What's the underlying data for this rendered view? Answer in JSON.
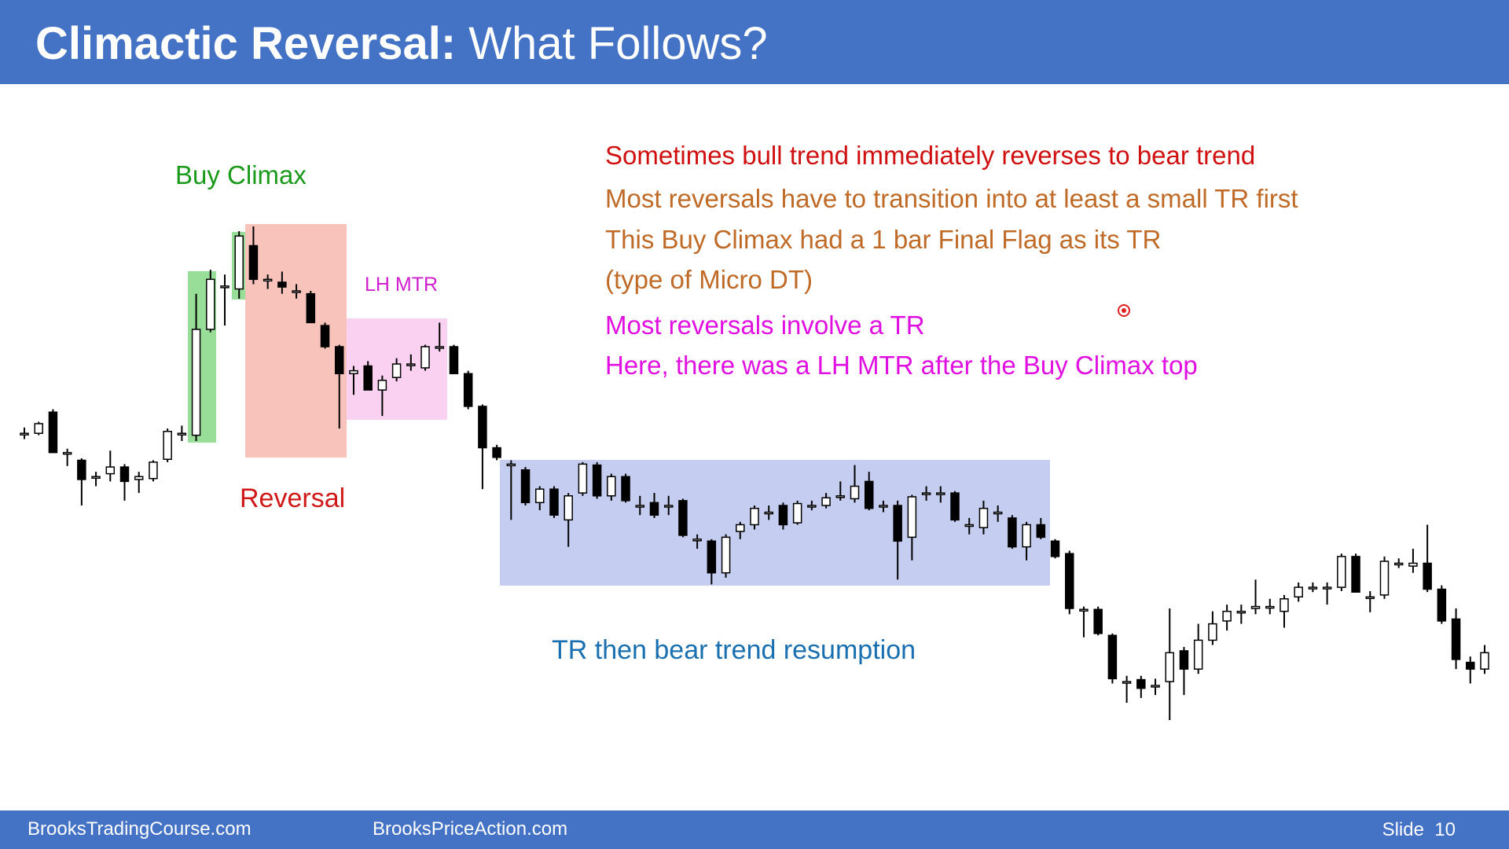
{
  "header": {
    "title_bold": "Climactic Reversal:",
    "title_rest": "What Follows?"
  },
  "notes": [
    "Sometimes bull trend immediately reverses to bear trend",
    "Most reversals have to transition into at least a small TR first",
    "This Buy Climax had a 1 bar Final Flag as its TR",
    "(type of Micro DT)",
    "Most reversals involve a TR",
    "Here, there was a LH MTR after the Buy Climax top"
  ],
  "labels": {
    "buy_climax": "Buy Climax",
    "lh_mtr": "LH MTR",
    "reversal": "Reversal",
    "tr": "TR then bear trend resumption"
  },
  "footer": {
    "left": "BrooksTradingCourse.com",
    "middle": "BrooksPriceAction.com",
    "slide": "Slide  10"
  },
  "chart_data": {
    "type": "candlestick",
    "up_color": "#ffffff",
    "down_color": "#000000",
    "candles": [
      [
        550,
        556,
        544,
        550
      ],
      [
        550,
        562,
        548,
        560
      ],
      [
        572,
        575,
        530,
        530
      ],
      [
        530,
        534,
        516,
        530
      ],
      [
        522,
        524,
        475,
        502
      ],
      [
        505,
        510,
        495,
        505
      ],
      [
        508,
        532,
        500,
        515
      ],
      [
        515,
        518,
        480,
        500
      ],
      [
        502,
        510,
        488,
        505
      ],
      [
        503,
        522,
        500,
        520
      ],
      [
        523,
        555,
        520,
        552
      ],
      [
        550,
        558,
        542,
        550
      ],
      [
        548,
        695,
        542,
        658
      ],
      [
        658,
        720,
        655,
        710
      ],
      [
        703,
        715,
        662,
        703
      ],
      [
        700,
        760,
        690,
        755
      ],
      [
        745,
        765,
        705,
        710
      ],
      [
        710,
        715,
        700,
        710
      ],
      [
        707,
        718,
        695,
        702
      ],
      [
        698,
        705,
        690,
        698
      ],
      [
        695,
        698,
        665,
        665
      ],
      [
        662,
        665,
        638,
        640
      ],
      [
        640,
        642,
        555,
        612
      ],
      [
        612,
        620,
        590,
        615
      ],
      [
        620,
        625,
        595,
        595
      ],
      [
        595,
        610,
        568,
        605
      ],
      [
        608,
        628,
        604,
        622
      ],
      [
        622,
        632,
        615,
        622
      ],
      [
        618,
        642,
        615,
        640
      ],
      [
        640,
        665,
        635,
        640
      ],
      [
        640,
        642,
        612,
        612
      ],
      [
        612,
        615,
        575,
        578
      ],
      [
        578,
        580,
        492,
        535
      ],
      [
        535,
        538,
        522,
        525
      ],
      [
        518,
        522,
        460,
        518
      ],
      [
        512,
        515,
        475,
        478
      ],
      [
        478,
        495,
        470,
        492
      ],
      [
        492,
        495,
        462,
        465
      ],
      [
        460,
        488,
        432,
        485
      ],
      [
        488,
        520,
        485,
        518
      ],
      [
        517,
        520,
        482,
        485
      ],
      [
        485,
        508,
        480,
        505
      ],
      [
        505,
        508,
        478,
        480
      ],
      [
        475,
        485,
        465,
        475
      ],
      [
        478,
        488,
        462,
        465
      ],
      [
        475,
        485,
        465,
        475
      ],
      [
        480,
        482,
        442,
        444
      ],
      [
        440,
        445,
        430,
        440
      ],
      [
        438,
        440,
        393,
        405
      ],
      [
        405,
        445,
        400,
        442
      ],
      [
        448,
        458,
        440,
        455
      ],
      [
        455,
        475,
        450,
        472
      ],
      [
        468,
        475,
        460,
        468
      ],
      [
        475,
        478,
        450,
        455
      ],
      [
        457,
        480,
        455,
        477
      ],
      [
        475,
        480,
        470,
        475
      ],
      [
        475,
        488,
        472,
        483
      ],
      [
        485,
        500,
        480,
        485
      ],
      [
        482,
        517,
        478,
        495
      ],
      [
        500,
        510,
        470,
        472
      ],
      [
        475,
        480,
        468,
        475
      ],
      [
        475,
        480,
        398,
        438
      ],
      [
        442,
        486,
        418,
        484
      ],
      [
        488,
        495,
        480,
        488
      ],
      [
        488,
        495,
        478,
        488
      ],
      [
        488,
        490,
        458,
        460
      ],
      [
        455,
        462,
        445,
        455
      ],
      [
        452,
        480,
        445,
        472
      ],
      [
        468,
        475,
        458,
        468
      ],
      [
        462,
        465,
        430,
        432
      ],
      [
        432,
        458,
        418,
        455
      ],
      [
        455,
        462,
        440,
        442
      ],
      [
        438,
        440,
        420,
        422
      ],
      [
        425,
        428,
        362,
        368
      ],
      [
        367,
        370,
        338,
        367
      ],
      [
        367,
        370,
        340,
        342
      ],
      [
        340,
        342,
        290,
        295
      ],
      [
        292,
        298,
        270,
        292
      ],
      [
        294,
        298,
        275,
        285
      ],
      [
        288,
        295,
        278,
        288
      ],
      [
        292,
        368,
        252,
        322
      ],
      [
        324,
        328,
        278,
        305
      ],
      [
        305,
        352,
        300,
        335
      ],
      [
        335,
        365,
        330,
        352
      ],
      [
        355,
        372,
        345,
        365
      ],
      [
        365,
        372,
        352,
        365
      ],
      [
        368,
        398,
        362,
        370
      ],
      [
        370,
        378,
        362,
        370
      ],
      [
        365,
        382,
        348,
        378
      ],
      [
        380,
        395,
        375,
        390
      ],
      [
        390,
        395,
        385,
        390
      ],
      [
        390,
        395,
        372,
        390
      ],
      [
        390,
        425,
        386,
        422
      ],
      [
        422,
        425,
        385,
        385
      ],
      [
        380,
        386,
        364,
        380
      ],
      [
        382,
        422,
        378,
        417
      ],
      [
        415,
        420,
        410,
        415
      ],
      [
        412,
        430,
        405,
        415
      ],
      [
        415,
        455,
        385,
        388
      ],
      [
        388,
        392,
        352,
        355
      ],
      [
        357,
        368,
        305,
        315
      ],
      [
        312,
        318,
        290,
        305
      ],
      [
        305,
        330,
        300,
        322
      ]
    ]
  }
}
